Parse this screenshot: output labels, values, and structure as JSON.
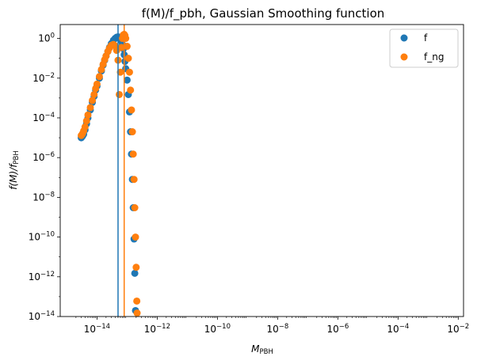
{
  "chart_data": {
    "type": "scatter",
    "title": "f(M)/f_pbh, Gaussian Smoothing function",
    "xlabel": {
      "main": "M",
      "sub": "PBH"
    },
    "ylabel": {
      "main": "f(M)/f",
      "sub": "PBH"
    },
    "x_scale": "log",
    "y_scale": "log",
    "xlim": [
      6e-16,
      0.015
    ],
    "ylim": [
      1e-14,
      5
    ],
    "x_ticks": [
      {
        "value": 1e-14,
        "base": "10",
        "exp": "−14"
      },
      {
        "value": 1e-12,
        "base": "10",
        "exp": "−12"
      },
      {
        "value": 1e-10,
        "base": "10",
        "exp": "−10"
      },
      {
        "value": 1e-08,
        "base": "10",
        "exp": "−8"
      },
      {
        "value": 1e-06,
        "base": "10",
        "exp": "−6"
      },
      {
        "value": 0.0001,
        "base": "10",
        "exp": "−4"
      },
      {
        "value": 0.01,
        "base": "10",
        "exp": "−2"
      }
    ],
    "y_ticks": [
      {
        "value": 1,
        "base": "10",
        "exp": "0"
      },
      {
        "value": 0.01,
        "base": "10",
        "exp": "−2"
      },
      {
        "value": 0.0001,
        "base": "10",
        "exp": "−4"
      },
      {
        "value": 1e-06,
        "base": "10",
        "exp": "−6"
      },
      {
        "value": 1e-08,
        "base": "10",
        "exp": "−8"
      },
      {
        "value": 1e-10,
        "base": "10",
        "exp": "−10"
      },
      {
        "value": 1e-12,
        "base": "10",
        "exp": "−12"
      },
      {
        "value": 1e-14,
        "base": "10",
        "exp": "−14"
      }
    ],
    "legend_position": "top-right",
    "grid": false,
    "series": [
      {
        "name": "f",
        "color": "#1f77b4",
        "points": [
          [
            3e-15,
            1e-05
          ],
          [
            3.3e-15,
            1.2e-05
          ],
          [
            3.6e-15,
            1.5e-05
          ],
          [
            4e-15,
            2.5e-05
          ],
          [
            4.5e-15,
            5e-05
          ],
          [
            5e-15,
            0.0001
          ],
          [
            6e-15,
            0.00025
          ],
          [
            7e-15,
            0.0006
          ],
          [
            8e-15,
            0.0012
          ],
          [
            9e-15,
            0.0025
          ],
          [
            1e-14,
            0.004
          ],
          [
            1.2e-14,
            0.01
          ],
          [
            1.4e-14,
            0.023
          ],
          [
            1.6e-14,
            0.045
          ],
          [
            1.8e-14,
            0.08
          ],
          [
            2e-14,
            0.13
          ],
          [
            2.3e-14,
            0.22
          ],
          [
            2.6e-14,
            0.35
          ],
          [
            3e-14,
            0.55
          ],
          [
            3.5e-14,
            0.8
          ],
          [
            4e-14,
            1.0
          ],
          [
            4.5e-14,
            1.15
          ],
          [
            5e-14,
            1.2
          ],
          [
            5.5e-14,
            1.15
          ],
          [
            6e-14,
            1.0
          ],
          [
            6.5e-14,
            0.75
          ],
          [
            7e-14,
            0.5
          ],
          [
            7.5e-14,
            0.3
          ],
          [
            8e-14,
            0.15
          ],
          [
            8.5e-14,
            0.07
          ],
          [
            9e-14,
            0.03
          ],
          [
            1e-13,
            0.008
          ],
          [
            1.1e-13,
            0.0015
          ],
          [
            1.2e-13,
            0.0002
          ],
          [
            1.3e-13,
            2e-05
          ],
          [
            1.4e-13,
            1.5e-06
          ],
          [
            1.5e-13,
            8e-08
          ],
          [
            1.6e-13,
            3e-09
          ],
          [
            1.7e-13,
            8e-11
          ],
          [
            1.8e-13,
            1.5e-12
          ],
          [
            1.9e-13,
            2e-14
          ]
        ]
      },
      {
        "name": "f_ng",
        "color": "#ff7f0e",
        "points": [
          [
            3e-15,
            1.3e-05
          ],
          [
            3.3e-15,
            1.6e-05
          ],
          [
            3.6e-15,
            2.2e-05
          ],
          [
            4e-15,
            3.5e-05
          ],
          [
            4.5e-15,
            7e-05
          ],
          [
            5e-15,
            0.00014
          ],
          [
            6e-15,
            0.00033
          ],
          [
            7e-15,
            0.00075
          ],
          [
            8e-15,
            0.0015
          ],
          [
            9e-15,
            0.003
          ],
          [
            1e-14,
            0.005
          ],
          [
            1.2e-14,
            0.012
          ],
          [
            1.4e-14,
            0.027
          ],
          [
            1.6e-14,
            0.05
          ],
          [
            1.8e-14,
            0.085
          ],
          [
            2e-14,
            0.13
          ],
          [
            2.3e-14,
            0.22
          ],
          [
            2.6e-14,
            0.33
          ],
          [
            3e-14,
            0.45
          ],
          [
            3.5e-14,
            0.5
          ],
          [
            4e-14,
            0.42
          ],
          [
            4.5e-14,
            0.25
          ],
          [
            5e-14,
            0.08
          ],
          [
            5.5e-14,
            0.0015
          ],
          [
            6e-14,
            0.02
          ],
          [
            6.5e-14,
            0.35
          ],
          [
            7e-14,
            1.0
          ],
          [
            7.5e-14,
            1.5
          ],
          [
            8e-14,
            1.6
          ],
          [
            8.5e-14,
            1.4
          ],
          [
            9e-14,
            1.0
          ],
          [
            1e-13,
            0.4
          ],
          [
            1.1e-13,
            0.1
          ],
          [
            1.2e-13,
            0.02
          ],
          [
            1.3e-13,
            0.0025
          ],
          [
            1.4e-13,
            0.00025
          ],
          [
            1.5e-13,
            2e-05
          ],
          [
            1.6e-13,
            1.5e-06
          ],
          [
            1.7e-13,
            8e-08
          ],
          [
            1.8e-13,
            3e-09
          ],
          [
            1.9e-13,
            1e-10
          ],
          [
            2e-13,
            3e-12
          ],
          [
            2.1e-13,
            6e-14
          ],
          [
            2.15e-13,
            1.5e-14
          ]
        ]
      }
    ],
    "vertical_lines": [
      {
        "x": 5e-14,
        "color": "#1f77b4"
      },
      {
        "x": 8e-14,
        "color": "#ff7f0e"
      }
    ]
  }
}
